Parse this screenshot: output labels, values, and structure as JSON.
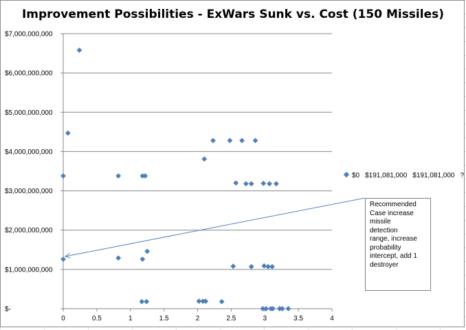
{
  "chart_data": {
    "type": "scatter",
    "title": "Improvement Possibilities - ExWars Sunk vs. Cost (150 Missiles)",
    "xlabel": "",
    "ylabel": "",
    "xlim": [
      0,
      4
    ],
    "ylim": [
      0,
      7000000000
    ],
    "x_ticks": [
      "0",
      "0.5",
      "1",
      "1.5",
      "2",
      "2.5",
      "3",
      "3.5",
      "4"
    ],
    "y_ticks": [
      "$-",
      "$1,000,000,000",
      "$2,000,000,000",
      "$3,000,000,000",
      "$4,000,000,000",
      "$5,000,000,000",
      "$6,000,000,000",
      "$7,000,000,000"
    ],
    "grid": "horizontal",
    "marker_color": "#4f81bd",
    "points": [
      {
        "x": 0.0,
        "y": 3380000000
      },
      {
        "x": 0.07,
        "y": 4470000000
      },
      {
        "x": 0.24,
        "y": 6580000000
      },
      {
        "x": 0.0,
        "y": 1260000000
      },
      {
        "x": 0.82,
        "y": 3380000000
      },
      {
        "x": 0.82,
        "y": 1290000000
      },
      {
        "x": 1.18,
        "y": 3380000000
      },
      {
        "x": 1.22,
        "y": 3380000000
      },
      {
        "x": 1.18,
        "y": 1260000000
      },
      {
        "x": 1.25,
        "y": 1460000000
      },
      {
        "x": 1.17,
        "y": 180000000
      },
      {
        "x": 1.24,
        "y": 180000000
      },
      {
        "x": 2.02,
        "y": 190000000
      },
      {
        "x": 2.08,
        "y": 190000000
      },
      {
        "x": 2.12,
        "y": 190000000
      },
      {
        "x": 2.36,
        "y": 180000000
      },
      {
        "x": 2.1,
        "y": 3810000000
      },
      {
        "x": 2.23,
        "y": 4280000000
      },
      {
        "x": 2.48,
        "y": 4280000000
      },
      {
        "x": 2.66,
        "y": 4280000000
      },
      {
        "x": 2.86,
        "y": 4280000000
      },
      {
        "x": 2.57,
        "y": 3200000000
      },
      {
        "x": 2.72,
        "y": 3180000000
      },
      {
        "x": 2.8,
        "y": 3180000000
      },
      {
        "x": 2.98,
        "y": 3190000000
      },
      {
        "x": 3.07,
        "y": 3180000000
      },
      {
        "x": 3.17,
        "y": 3180000000
      },
      {
        "x": 2.53,
        "y": 1080000000
      },
      {
        "x": 2.8,
        "y": 1070000000
      },
      {
        "x": 2.99,
        "y": 1090000000
      },
      {
        "x": 3.05,
        "y": 1070000000
      },
      {
        "x": 3.11,
        "y": 1070000000
      },
      {
        "x": 2.97,
        "y": 0
      },
      {
        "x": 3.02,
        "y": 0
      },
      {
        "x": 3.09,
        "y": 0
      },
      {
        "x": 3.12,
        "y": 0
      },
      {
        "x": 3.22,
        "y": 0
      },
      {
        "x": 3.26,
        "y": 0
      },
      {
        "x": 3.35,
        "y": 0
      }
    ],
    "legend": {
      "placement": "right",
      "entries": [
        "$0",
        "$191,081,000",
        "$191,081,000",
        "?"
      ]
    },
    "annotation": {
      "text": "Recommended Case increase missile detection range, increase probability intercept, add 1 destroyer",
      "lines": [
        "Recommended",
        "Case increase",
        "missile",
        "detection",
        "range, increase",
        "probability",
        "intercept, add 1",
        "destroyer"
      ],
      "arrow_target": {
        "x": 0.0,
        "y": 1330000000
      }
    }
  }
}
